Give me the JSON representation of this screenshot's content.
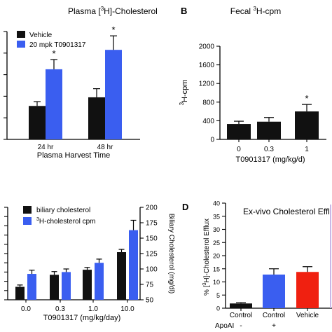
{
  "panels": {
    "A": {
      "letter": ""
    },
    "B": {
      "letter": "B"
    },
    "C": {
      "letter": ""
    },
    "D": {
      "letter": "D"
    }
  },
  "chart_data": [
    {
      "id": "A",
      "type": "bar",
      "title_parts": [
        "Plasma [",
        "3",
        "H]-Cholesterol"
      ],
      "xlabel": "Plasma Harvest Time",
      "ylabel": "",
      "categories": [
        "24 hr",
        "48 hr"
      ],
      "ylim": [
        0,
        500
      ],
      "yticks": [
        0,
        100,
        200,
        300,
        400,
        500
      ],
      "ytick_labels": [
        "",
        "",
        "",
        "",
        "",
        ""
      ],
      "legend": {
        "placement": "top-left"
      },
      "series": [
        {
          "name": "Vehicle",
          "color": "#111111",
          "values": [
            155,
            195
          ],
          "errors": [
            20,
            40
          ]
        },
        {
          "name": "20 mpk T0901317",
          "color": "#3a5ef0",
          "values": [
            325,
            415
          ],
          "errors": [
            45,
            65
          ]
        }
      ],
      "significance": [
        "*",
        "*"
      ]
    },
    {
      "id": "B",
      "type": "bar",
      "title_parts": [
        "Fecal ",
        "3",
        "H-cpm"
      ],
      "xlabel": "T0901317 (mg/kg/d)",
      "ylabel_parts": [
        "",
        "3",
        "H-cpm"
      ],
      "categories": [
        "0",
        "0.3",
        "1"
      ],
      "ylim": [
        0,
        2000
      ],
      "yticks": [
        0,
        400,
        800,
        1200,
        1600,
        2000
      ],
      "ytick_labels": [
        "0",
        "400",
        "800",
        "1200",
        "1600",
        "2000"
      ],
      "series": [
        {
          "name": "",
          "color": "#111111",
          "values": [
            330,
            380,
            600
          ],
          "errors": [
            60,
            90,
            150
          ]
        }
      ],
      "significance": [
        "",
        "",
        "*"
      ]
    },
    {
      "id": "C",
      "type": "bar",
      "title": "",
      "xlabel": "T0901317 (mg/kg/day)",
      "categories": [
        "0.0",
        "0.3",
        "1.0",
        "10.0"
      ],
      "left_axis": {
        "ylim": [
          0,
          20
        ],
        "yticks": [
          0,
          2,
          4,
          6,
          8,
          10,
          12,
          14,
          16,
          18,
          20
        ],
        "ytick_labels": [
          "",
          "",
          "",
          "",
          "",
          "",
          "",
          "",
          "",
          "",
          ""
        ]
      },
      "right_axis": {
        "label": "Biliary Cholesterol (mg/dl)",
        "ylim": [
          50,
          200
        ],
        "yticks": [
          50,
          75,
          100,
          125,
          150,
          175,
          200
        ],
        "ytick_labels": [
          "50",
          "75",
          "100",
          "125",
          "150",
          "175",
          "200"
        ]
      },
      "legend": {
        "placement": "top-left"
      },
      "series": [
        {
          "name": "biliary cholesterol",
          "color": "#111111",
          "axis": "left",
          "values": [
            2.8,
            5.4,
            6.5,
            10.3
          ],
          "errors": [
            0.4,
            0.7,
            0.5,
            0.6
          ]
        },
        {
          "name_parts": [
            "",
            "3",
            "H-cholesterol cpm"
          ],
          "name": "3H-cholesterol cpm",
          "color": "#3a5ef0",
          "axis": "right",
          "values": [
            92,
            95,
            110,
            163
          ],
          "errors": [
            6,
            5,
            6,
            16
          ]
        }
      ]
    },
    {
      "id": "D",
      "type": "bar",
      "title": "Ex-vivo Cholesterol Effl",
      "ylabel_parts": [
        "% [",
        "3",
        "H]-Cholesterol Efflux"
      ],
      "categories": [
        "Control",
        "Control",
        "Vehicle"
      ],
      "row_label": "ApoAI",
      "row_values": [
        "-",
        "+",
        ""
      ],
      "ylim": [
        0,
        40
      ],
      "yticks": [
        0,
        5,
        10,
        15,
        20,
        25,
        30,
        35,
        40
      ],
      "ytick_labels": [
        "0",
        "5",
        "10",
        "15",
        "20",
        "25",
        "30",
        "35",
        "40"
      ],
      "series": [
        {
          "name": "",
          "colors": [
            "#111111",
            "#3a5ef0",
            "#f02010"
          ],
          "values": [
            1.8,
            12.8,
            13.8
          ],
          "errors": [
            0.3,
            2.2,
            2.0
          ]
        }
      ]
    }
  ]
}
